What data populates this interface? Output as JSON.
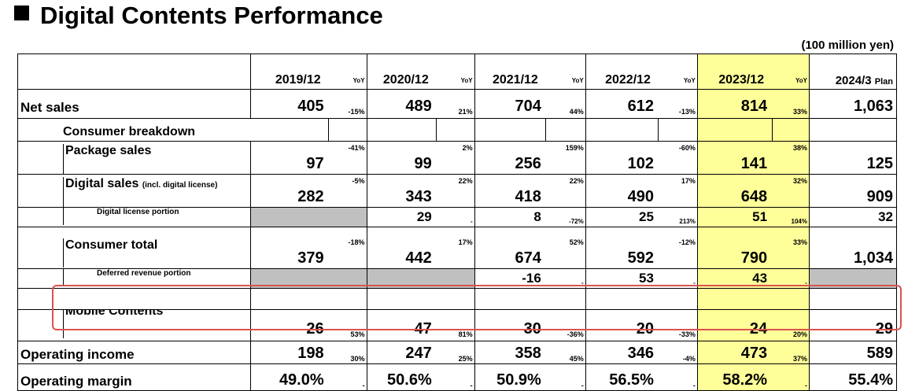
{
  "title": "Digital Contents Performance",
  "unit": "(100 million yen)",
  "header": {
    "periods": [
      "2019/12",
      "2020/12",
      "2021/12",
      "2022/12",
      "2023/12"
    ],
    "yoy_label": "YoY",
    "plan_period": "2024/3",
    "plan_label": "Plan"
  },
  "rows": {
    "net_sales": {
      "label": "Net sales",
      "values": [
        "405",
        "489",
        "704",
        "612",
        "814"
      ],
      "yoy": [
        "-15%",
        "21%",
        "44%",
        "-13%",
        "33%"
      ],
      "plan": "1,063"
    },
    "consumer_breakdown": {
      "label": "Consumer breakdown"
    },
    "package_sales": {
      "label": "Package sales",
      "values": [
        "97",
        "99",
        "256",
        "102",
        "141"
      ],
      "yoy": [
        "-41%",
        "2%",
        "159%",
        "-60%",
        "38%"
      ],
      "plan": "125"
    },
    "digital_sales": {
      "label": "Digital sales",
      "label_note": "(incl. digital license)",
      "values": [
        "282",
        "343",
        "418",
        "490",
        "648"
      ],
      "yoy": [
        "-5%",
        "22%",
        "22%",
        "17%",
        "32%"
      ],
      "plan": "909"
    },
    "digital_license": {
      "label": "Digital license portion",
      "values": [
        "",
        "29",
        "8",
        "25",
        "51"
      ],
      "yoy": [
        "",
        "-",
        "-72%",
        "213%",
        "104%"
      ],
      "plan": "32"
    },
    "consumer_total": {
      "label": "Consumer total",
      "values": [
        "379",
        "442",
        "674",
        "592",
        "790"
      ],
      "yoy": [
        "-18%",
        "17%",
        "52%",
        "-12%",
        "33%"
      ],
      "plan": "1,034"
    },
    "deferred_revenue": {
      "label": "Deferred revenue portion",
      "values": [
        "",
        "",
        "-16",
        "53",
        "43"
      ],
      "yoy": [
        "",
        "",
        "-",
        "-",
        "-"
      ],
      "plan": ""
    },
    "mobile_contents": {
      "label": "Mobile Contents",
      "values": [
        "26",
        "47",
        "30",
        "20",
        "24"
      ],
      "yoy": [
        "53%",
        "81%",
        "-36%",
        "-33%",
        "20%"
      ],
      "plan": "29"
    },
    "operating_income": {
      "label": "Operating income",
      "values": [
        "198",
        "247",
        "358",
        "346",
        "473"
      ],
      "yoy": [
        "30%",
        "25%",
        "45%",
        "-4%",
        "37%"
      ],
      "plan": "589"
    },
    "operating_margin": {
      "label": "Operating margin",
      "values": [
        "49.0%",
        "50.6%",
        "50.9%",
        "56.5%",
        "58.2%"
      ],
      "yoy": [
        "-",
        "-",
        "-",
        "-",
        "-"
      ],
      "plan": "55.4%"
    }
  },
  "colors": {
    "highlight": "#ffff99",
    "gray_cell": "#c0c0c0",
    "red_box": "#d9534f"
  }
}
